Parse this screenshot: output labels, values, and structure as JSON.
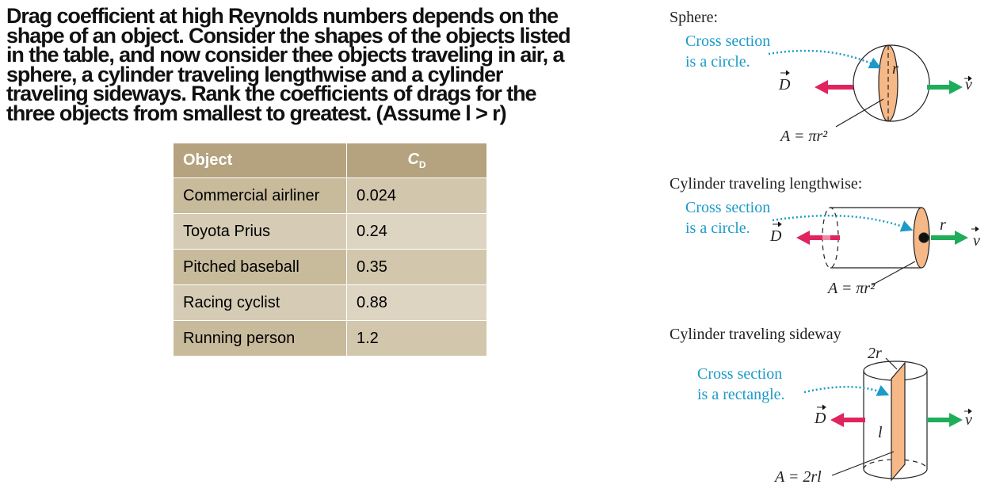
{
  "question": {
    "lines": [
      "Drag coefficient at high Reynolds numbers depends on the",
      "shape of an object. Consider the shapes of the objects listed",
      "in the table, and now consider thee objects traveling in air, a",
      "sphere, a cylinder traveling lengthwise and a cylinder",
      "traveling sideways. Rank the coefficients of drags for the",
      "three objects from smallest to greatest. (Assume l > r)"
    ]
  },
  "table": {
    "header": {
      "object": "Object",
      "cd_symbol": "C",
      "cd_subscript": "D"
    },
    "rows": [
      [
        "Commercial airliner",
        "0.024"
      ],
      [
        "Toyota Prius",
        "0.24"
      ],
      [
        "Pitched baseball",
        "0.35"
      ],
      [
        "Racing cyclist",
        "0.88"
      ],
      [
        "Running person",
        "1.2"
      ]
    ]
  },
  "diagrams": [
    {
      "title": "Sphere:",
      "note": [
        "Cross section",
        "is a circle."
      ],
      "drag": "D",
      "velocity": "v",
      "radius": "r",
      "area": "A = πr²"
    },
    {
      "title": "Cylinder traveling lengthwise:",
      "note": [
        "Cross section",
        "is a circle."
      ],
      "drag": "D",
      "velocity": "v",
      "radius": "r",
      "area": "A = πr²"
    },
    {
      "title": "Cylinder traveling sideway",
      "note": [
        "Cross section",
        "is a rectangle."
      ],
      "drag": "D",
      "velocity": "v",
      "width": "2r",
      "length": "l",
      "area": "A = 2rl"
    }
  ]
}
